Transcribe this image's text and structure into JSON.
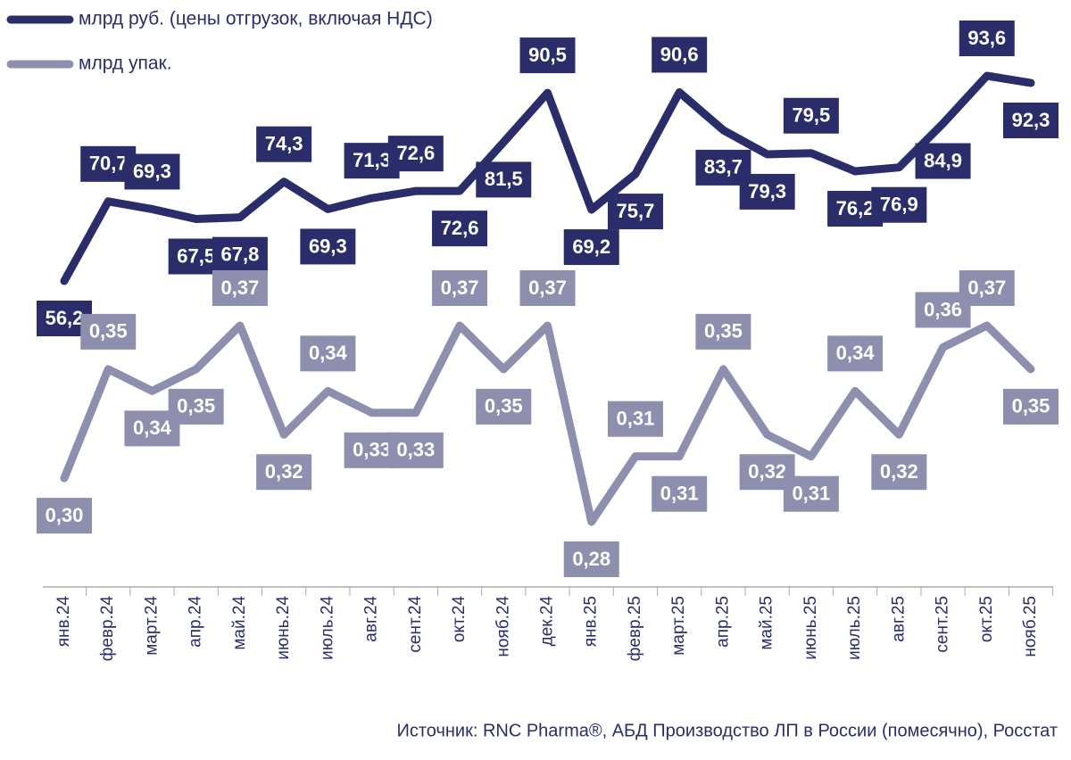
{
  "chart_data": {
    "type": "line",
    "categories": [
      "янв.24",
      "февр.24",
      "март.24",
      "апр.24",
      "май.24",
      "июнь.24",
      "июль.24",
      "авг.24",
      "сент.24",
      "окт.24",
      "нояб.24",
      "дек.24",
      "янв.25",
      "февр.25",
      "март.25",
      "апр.25",
      "май.25",
      "июнь.25",
      "июль.25",
      "авг.25",
      "сент.25",
      "окт.25",
      "нояб.25"
    ],
    "series": [
      {
        "name": "млрд руб. (цены отгрузок, включая НДС)",
        "color": "#2b2d6b",
        "values": [
          56.2,
          70.7,
          69.3,
          67.5,
          67.8,
          74.3,
          69.3,
          71.3,
          72.6,
          72.6,
          81.5,
          90.5,
          69.2,
          75.7,
          90.6,
          83.7,
          79.3,
          79.5,
          76.2,
          76.9,
          84.9,
          93.6,
          92.3
        ],
        "value_labels": [
          "56,2",
          "70,7",
          "69,3",
          "67,5",
          "67,8",
          "74,3",
          "69,3",
          "71,3",
          "72,6",
          "72,6",
          "81,5",
          "90,5",
          "69,2",
          "75,7",
          "90,6",
          "83,7",
          "79,3",
          "79,5",
          "76,2",
          "76,9",
          "84,9",
          "93,6",
          "92,3"
        ]
      },
      {
        "name": "млрд упак.",
        "color": "#8e8fae",
        "axis": "y2",
        "values": [
          0.3,
          0.35,
          0.34,
          0.35,
          0.37,
          0.32,
          0.34,
          0.33,
          0.33,
          0.37,
          0.35,
          0.37,
          0.28,
          0.31,
          0.31,
          0.35,
          0.32,
          0.31,
          0.34,
          0.32,
          0.36,
          0.37,
          0.35
        ],
        "value_labels": [
          "0,30",
          "0,35",
          "0,34",
          "0,35",
          "0,37",
          "0,32",
          "0,34",
          "0,33",
          "0,33",
          "0,37",
          "0,35",
          "0,37",
          "0,28",
          "0,31",
          "0,31",
          "0,35",
          "0,32",
          "0,31",
          "0,34",
          "0,32",
          "0,36",
          "0,37",
          "0,35"
        ]
      }
    ],
    "source": "Источник: RNC Pharma®, АБД Производство ЛП в России (помесячно), Росстат"
  }
}
